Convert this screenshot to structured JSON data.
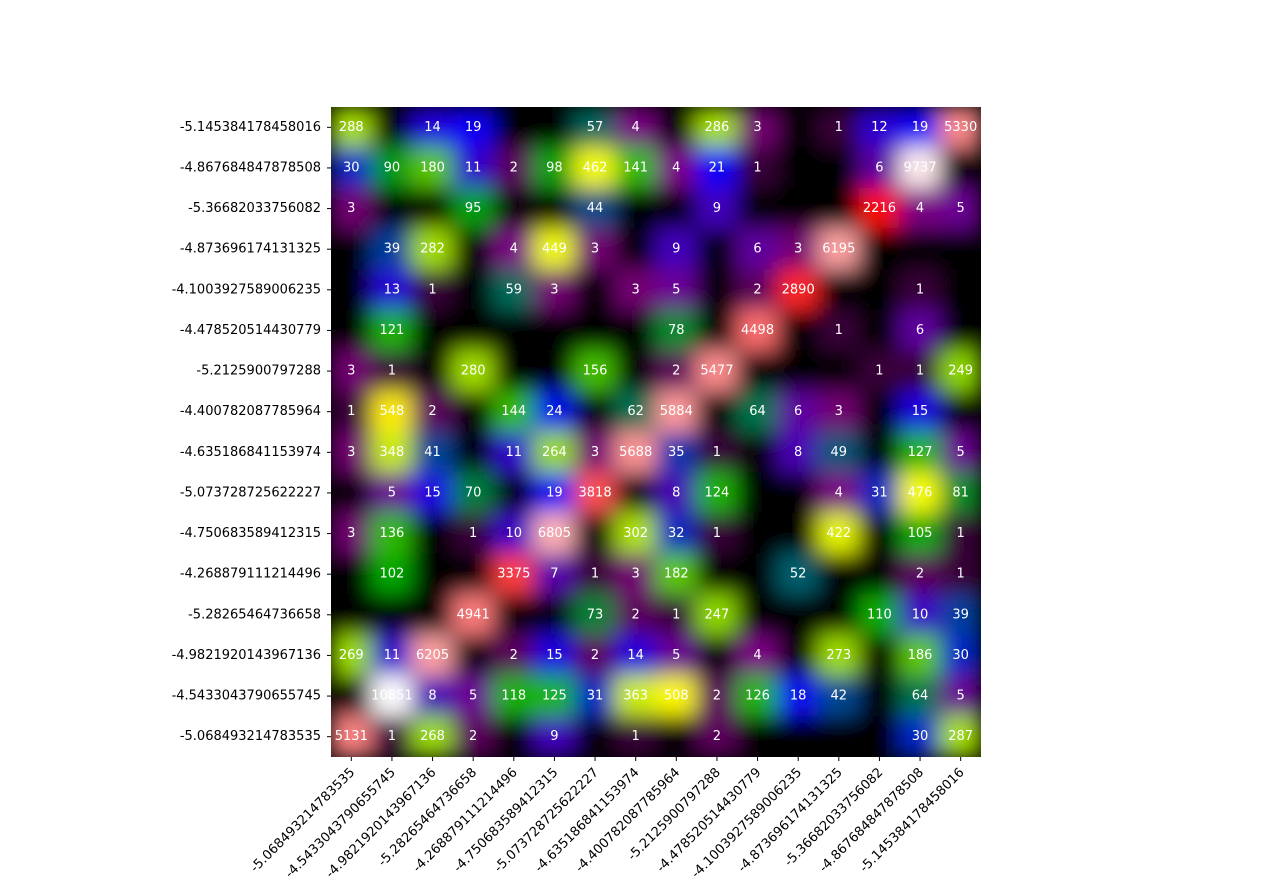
{
  "chart_data": {
    "type": "heatmap",
    "title": "",
    "xlabel": "",
    "ylabel": "",
    "colormap": [
      "#000000",
      "#800080",
      "#0000ff",
      "#00aa00",
      "#ffff00",
      "#ff0000",
      "#ffffff"
    ],
    "x_labels": [
      "-5.068493214783535",
      "-4.5433043790655745",
      "-4.9821920143967136",
      "-5.28265464736658",
      "-4.268879111214496",
      "-4.750683589412315",
      "-5.073728725622227",
      "-4.635186841153974",
      "-4.400782087785964",
      "-5.2125900797288",
      "-4.478520514430779",
      "-4.1003927589006235",
      "-4.873696174131325",
      "-5.36682033756082",
      "-4.867684847878508",
      "-5.145384178458016"
    ],
    "y_labels": [
      "-5.145384178458016",
      "-4.867684847878508",
      "-5.36682033756082",
      "-4.873696174131325",
      "-4.1003927589006235",
      "-4.478520514430779",
      "-5.2125900797288",
      "-4.400782087785964",
      "-4.635186841153974",
      "-5.073728725622227",
      "-4.750683589412315",
      "-4.268879111214496",
      "-5.28265464736658",
      "-4.9821920143967136",
      "-4.5433043790655745",
      "-5.068493214783535"
    ],
    "values": [
      [
        288,
        null,
        14,
        19,
        null,
        null,
        57,
        4,
        null,
        286,
        3,
        null,
        1,
        12,
        19,
        5330
      ],
      [
        30,
        90,
        180,
        11,
        2,
        98,
        462,
        141,
        4,
        21,
        1,
        null,
        null,
        6,
        9737,
        null
      ],
      [
        3,
        null,
        null,
        95,
        null,
        null,
        44,
        null,
        null,
        9,
        null,
        null,
        null,
        2216,
        4,
        5
      ],
      [
        null,
        39,
        282,
        null,
        4,
        449,
        3,
        null,
        9,
        null,
        6,
        3,
        6195,
        null,
        null,
        null
      ],
      [
        null,
        13,
        1,
        null,
        59,
        3,
        null,
        3,
        5,
        null,
        2,
        2890,
        null,
        null,
        1,
        null
      ],
      [
        null,
        121,
        null,
        null,
        null,
        null,
        null,
        null,
        78,
        null,
        4498,
        null,
        1,
        null,
        6,
        null
      ],
      [
        3,
        1,
        null,
        280,
        null,
        null,
        156,
        null,
        2,
        5477,
        null,
        null,
        null,
        1,
        1,
        249
      ],
      [
        1,
        548,
        2,
        null,
        144,
        24,
        null,
        62,
        5884,
        null,
        64,
        6,
        3,
        null,
        15,
        null
      ],
      [
        3,
        348,
        41,
        null,
        11,
        264,
        3,
        5688,
        35,
        1,
        null,
        8,
        49,
        null,
        127,
        5
      ],
      [
        null,
        5,
        15,
        70,
        null,
        19,
        3818,
        null,
        8,
        124,
        null,
        null,
        4,
        31,
        476,
        81
      ],
      [
        3,
        136,
        null,
        1,
        10,
        6805,
        null,
        302,
        32,
        1,
        null,
        null,
        422,
        null,
        105,
        1
      ],
      [
        null,
        102,
        null,
        null,
        3375,
        7,
        1,
        3,
        182,
        null,
        null,
        52,
        null,
        null,
        2,
        1
      ],
      [
        null,
        null,
        null,
        4941,
        null,
        null,
        73,
        2,
        1,
        247,
        null,
        null,
        null,
        110,
        10,
        39
      ],
      [
        269,
        11,
        6205,
        null,
        2,
        15,
        2,
        14,
        5,
        null,
        4,
        null,
        273,
        null,
        186,
        30
      ],
      [
        null,
        10851,
        8,
        5,
        118,
        125,
        31,
        363,
        508,
        2,
        126,
        18,
        42,
        null,
        64,
        5
      ],
      [
        5131,
        1,
        268,
        2,
        null,
        9,
        null,
        1,
        null,
        2,
        null,
        null,
        null,
        null,
        30,
        287
      ]
    ]
  }
}
